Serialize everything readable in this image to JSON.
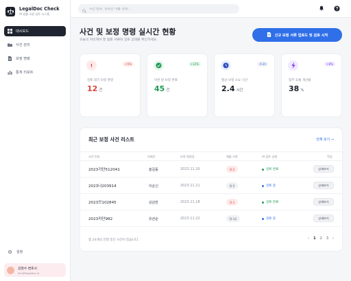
{
  "brand": {
    "title": "LegalDoc Check",
    "subtitle": "AI 법률 서류 검토 시스템"
  },
  "sidebar": {
    "items": [
      {
        "label": "대시보드",
        "icon": "dashboard-icon",
        "active": true
      },
      {
        "label": "사건 관리",
        "icon": "folder-icon",
        "active": false
      },
      {
        "label": "보정 명령",
        "icon": "document-icon",
        "active": false
      },
      {
        "label": "통계 리포트",
        "icon": "chart-icon",
        "active": false
      }
    ],
    "settings_label": "설정",
    "user": {
      "name": "김철수 변호사",
      "email": "kim@legaldoc.ai"
    }
  },
  "search": {
    "placeholder": "사건 번호, 의뢰인 이름 검색..."
  },
  "header": {
    "title": "사건 및 보정 명령 실시간 현황",
    "subtitle": "오늘의 처리해야 할 법률 서류와 검토 상태를 확인하세요.",
    "primary_action": "신규 보정 서류 업로드 및 검토 시작"
  },
  "stats": [
    {
      "label": "검토 대기 보정 명령",
      "value": "12",
      "unit": "건",
      "delta": "+5%",
      "icon": "alert-icon",
      "color": "#d9443a",
      "icon_bg": "#fdeaea",
      "delta_bg": "#fdeaea",
      "delta_color": "#d9443a"
    },
    {
      "label": "이번 달 보정 완료",
      "value": "45",
      "unit": "건",
      "delta": "+12%",
      "icon": "check-circle-icon",
      "color": "#1f9a57",
      "icon_bg": "#e6f6ec",
      "delta_bg": "#e6f6ec",
      "delta_color": "#1f9a57"
    },
    {
      "label": "평균 보정 소요 시간",
      "value": "2.4",
      "unit": "시간",
      "delta": "-0.3h",
      "icon": "clock-icon",
      "color": "#1c1f2b",
      "icon_bg": "#e8efff",
      "delta_bg": "#eff1f4",
      "delta_color": "#2f6fe8"
    },
    {
      "label": "업무 효율 개선율",
      "value": "38",
      "unit": "%",
      "delta": "+8%",
      "icon": "bolt-icon",
      "color": "#1c1f2b",
      "icon_bg": "#f1e9ff",
      "delta_bg": "#f1e9ff",
      "delta_color": "#7c3aed"
    }
  ],
  "table": {
    "title": "최근 보정 사건 리스트",
    "view_all": "전체 보기 →",
    "columns": [
      "사건 번호",
      "의뢰인",
      "보정 명령일",
      "제출 기한",
      "AI 검토 상태",
      "작업"
    ],
    "rows": [
      {
        "case_no": "2023가단512041",
        "client": "홍길동",
        "date": "2023.11.20",
        "deadline": "D-2",
        "deadline_style": "red",
        "status": "검토 완료",
        "status_style": "done",
        "action": "상세보기"
      },
      {
        "case_no": "2023나203914",
        "client": "이순신",
        "date": "2023.11.21",
        "deadline": "D-5",
        "deadline_style": "gray",
        "status": "검토 중",
        "status_style": "review",
        "action": "상세보기"
      },
      {
        "case_no": "2023므102845",
        "client": "강감찬",
        "date": "2023.11.18",
        "deadline": "D-1",
        "deadline_style": "red",
        "status": "검토 완료",
        "status_style": "done",
        "action": "상세보기"
      },
      {
        "case_no": "2023카단982",
        "client": "유관순",
        "date": "2023.11.22",
        "deadline": "D-14",
        "deadline_style": "gray",
        "status": "검토 중",
        "status_style": "review",
        "action": "상세보기"
      }
    ],
    "footer": "총 24개의 진행 중인 사건이 있습니다.",
    "pages": [
      "1",
      "2",
      "3"
    ],
    "current_page": "1"
  }
}
